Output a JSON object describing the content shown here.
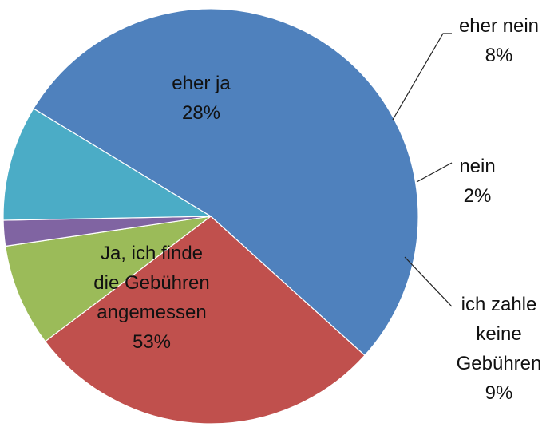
{
  "chart_data": {
    "type": "pie",
    "slices": [
      {
        "label": [
          "Ja, ich finde",
          "die Gebühren",
          "angemessen"
        ],
        "percent_label": "53%",
        "value": 53,
        "color": "#4f81bd"
      },
      {
        "label": [
          "eher ja"
        ],
        "percent_label": "28%",
        "value": 28,
        "color": "#c0504d"
      },
      {
        "label": [
          "eher nein"
        ],
        "percent_label": "8%",
        "value": 8,
        "color": "#9bbb59"
      },
      {
        "label": [
          "nein"
        ],
        "percent_label": "2%",
        "value": 2,
        "color": "#8064a2"
      },
      {
        "label": [
          "ich zahle",
          "keine",
          "Gebühren"
        ],
        "percent_label": "9%",
        "value": 9,
        "color": "#4bacc6"
      }
    ]
  }
}
